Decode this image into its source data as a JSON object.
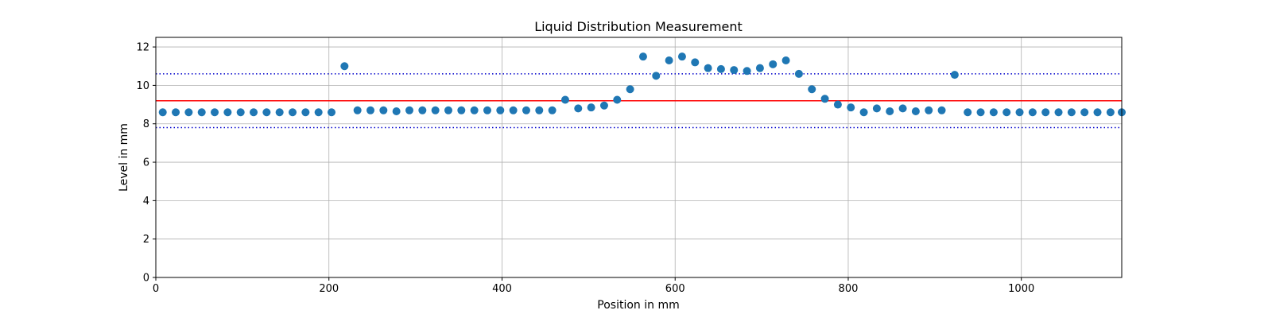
{
  "chart_data": {
    "type": "scatter",
    "title": "Liquid Distribution Measurement",
    "xlabel": "Position in mm",
    "ylabel": "Level in mm",
    "xlim": [
      0,
      1116
    ],
    "ylim": [
      0,
      12.5
    ],
    "xticks": [
      0,
      200,
      400,
      600,
      800,
      1000
    ],
    "yticks": [
      0,
      2,
      4,
      6,
      8,
      10,
      12
    ],
    "grid": true,
    "point_color": "#1f77b4",
    "reference_lines": [
      {
        "style": "solid",
        "color": "#ff0000",
        "y": 9.2
      },
      {
        "style": "dotted",
        "color": "#0000cc",
        "y": 10.6
      },
      {
        "style": "dotted",
        "color": "#0000cc",
        "y": 7.8
      }
    ],
    "series": [
      {
        "x": [
          8,
          23,
          38,
          53,
          68,
          83,
          98,
          113,
          128,
          143,
          158,
          173,
          188,
          203,
          218,
          233,
          248,
          263,
          278,
          293,
          308,
          323,
          338,
          353,
          368,
          383,
          398,
          413,
          428,
          443,
          458,
          473,
          488,
          503,
          518,
          533,
          548,
          563,
          578,
          593,
          608,
          623,
          638,
          653,
          668,
          683,
          698,
          713,
          728,
          743,
          758,
          773,
          788,
          803,
          818,
          833,
          848,
          863,
          878,
          893,
          908,
          923,
          938,
          953,
          968,
          983,
          998,
          1013,
          1028,
          1043,
          1058,
          1073,
          1088,
          1103,
          1116
        ],
        "y": [
          8.6,
          8.6,
          8.6,
          8.6,
          8.6,
          8.6,
          8.6,
          8.6,
          8.6,
          8.6,
          8.6,
          8.6,
          8.6,
          8.6,
          11.0,
          8.7,
          8.7,
          8.7,
          8.65,
          8.7,
          8.7,
          8.7,
          8.7,
          8.7,
          8.7,
          8.7,
          8.7,
          8.7,
          8.7,
          8.7,
          8.7,
          9.25,
          8.8,
          8.85,
          8.95,
          9.25,
          9.8,
          11.5,
          10.5,
          11.3,
          11.5,
          11.2,
          10.9,
          10.85,
          10.8,
          10.75,
          10.9,
          11.1,
          11.3,
          10.6,
          9.8,
          9.3,
          9.0,
          8.85,
          8.6,
          8.8,
          8.65,
          8.8,
          8.65,
          8.7,
          8.7,
          10.55,
          8.6,
          8.6,
          8.6,
          8.6,
          8.6,
          8.6,
          8.6,
          8.6,
          8.6,
          8.6,
          8.6,
          8.6,
          8.6
        ]
      }
    ]
  }
}
